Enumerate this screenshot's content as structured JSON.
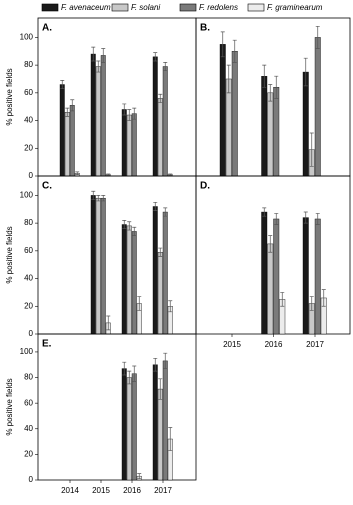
{
  "legend": [
    {
      "name": "F. avenaceum",
      "color": "#1a1a1a"
    },
    {
      "name": "F. solani",
      "color": "#c8c8c8"
    },
    {
      "name": "F. redolens",
      "color": "#7a7a7a"
    },
    {
      "name": "F. graminearum",
      "color": "#ececec"
    }
  ],
  "chart_data": [
    {
      "type": "bar",
      "title": "A.",
      "ylabel": "% positive fields",
      "categories": [
        null,
        null,
        null,
        null
      ],
      "ylim": [
        0,
        114
      ],
      "yticks": [
        0,
        20,
        40,
        60,
        80,
        100
      ],
      "series": [
        {
          "values": [
            66,
            88,
            48,
            86
          ],
          "errors": [
            3,
            5,
            4,
            3
          ]
        },
        {
          "values": [
            46,
            79,
            44,
            56
          ],
          "errors": [
            3,
            4,
            4,
            3
          ]
        },
        {
          "values": [
            51,
            87,
            45,
            79
          ],
          "errors": [
            4,
            5,
            4,
            3
          ]
        },
        {
          "values": [
            2,
            1,
            0,
            1
          ],
          "errors": [
            1,
            0.5,
            0,
            0.5
          ]
        }
      ]
    },
    {
      "type": "bar",
      "title": "B.",
      "categories": [
        null,
        null,
        null
      ],
      "ylim": [
        0,
        114
      ],
      "series": [
        {
          "values": [
            95,
            72,
            75
          ],
          "errors": [
            9,
            8,
            10
          ]
        },
        {
          "values": [
            70,
            60,
            19
          ],
          "errors": [
            10,
            6,
            12
          ]
        },
        {
          "values": [
            90,
            64,
            100
          ],
          "errors": [
            8,
            8,
            8
          ]
        },
        {
          "values": [
            0,
            0,
            0
          ],
          "errors": [
            0,
            0,
            0
          ]
        }
      ]
    },
    {
      "type": "bar",
      "title": "C.",
      "ylabel": "% positive fields",
      "categories": [
        null,
        null,
        null,
        null
      ],
      "ylim": [
        0,
        114
      ],
      "yticks": [
        0,
        20,
        40,
        60,
        80,
        100
      ],
      "series": [
        {
          "values": [
            null,
            100,
            79,
            92
          ],
          "errors": [
            null,
            3,
            3,
            3
          ]
        },
        {
          "values": [
            null,
            98,
            78,
            59
          ],
          "errors": [
            null,
            2,
            3,
            3
          ]
        },
        {
          "values": [
            null,
            98,
            74,
            88
          ],
          "errors": [
            null,
            2,
            3,
            3
          ]
        },
        {
          "values": [
            null,
            8,
            22,
            20
          ],
          "errors": [
            null,
            5,
            5,
            4
          ]
        }
      ]
    },
    {
      "type": "bar",
      "title": "D.",
      "categories": [
        "2015",
        "2016",
        "2017"
      ],
      "ylim": [
        0,
        114
      ],
      "series": [
        {
          "values": [
            null,
            88,
            84
          ],
          "errors": [
            null,
            3,
            4
          ]
        },
        {
          "values": [
            null,
            65,
            22
          ],
          "errors": [
            null,
            6,
            5
          ]
        },
        {
          "values": [
            null,
            83,
            83
          ],
          "errors": [
            null,
            4,
            4
          ]
        },
        {
          "values": [
            null,
            25,
            26
          ],
          "errors": [
            null,
            5,
            6
          ]
        }
      ]
    },
    {
      "type": "bar",
      "title": "E.",
      "ylabel": "% positive fields",
      "categories": [
        "2014",
        "2015",
        "2016",
        "2017"
      ],
      "ylim": [
        0,
        114
      ],
      "yticks": [
        0,
        20,
        40,
        60,
        80,
        100
      ],
      "series": [
        {
          "values": [
            null,
            null,
            87,
            90
          ],
          "errors": [
            null,
            null,
            5,
            5
          ]
        },
        {
          "values": [
            null,
            null,
            80,
            71
          ],
          "errors": [
            null,
            null,
            5,
            8
          ]
        },
        {
          "values": [
            null,
            null,
            83,
            93
          ],
          "errors": [
            null,
            null,
            6,
            6
          ]
        },
        {
          "values": [
            null,
            null,
            3,
            32
          ],
          "errors": [
            null,
            null,
            2,
            9
          ]
        }
      ]
    }
  ]
}
